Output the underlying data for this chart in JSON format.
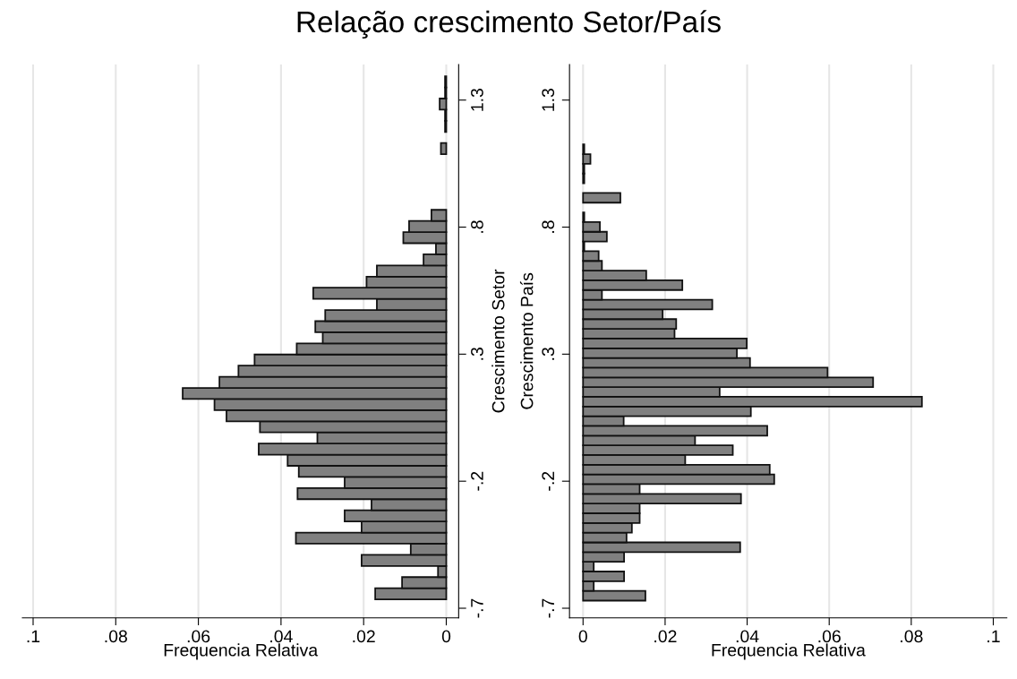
{
  "chart_data": [
    {
      "type": "histogram",
      "orientation": "horizontal",
      "title": "Relação crescimento Setor/País",
      "xlabel": "Frequencia Relativa",
      "ylabel": "Crescimento Setor",
      "color": "#808080",
      "grid": "x",
      "bins": [
        -0.665,
        -0.6212,
        -0.5774,
        -0.5336,
        -0.4898,
        -0.446,
        -0.4022,
        -0.3584,
        -0.3146,
        -0.2708,
        -0.227,
        -0.1832,
        -0.1394,
        -0.0956,
        -0.0518,
        -0.008,
        0.0358,
        0.0796,
        0.1234,
        0.1672,
        0.211,
        0.2548,
        0.2986,
        0.3424,
        0.3862,
        0.43,
        0.4738,
        0.5176,
        0.5614,
        0.6052,
        0.649,
        0.6928,
        0.7366,
        0.7804,
        0.8242,
        0.868,
        0.9118,
        0.9556,
        0.9994,
        1.0432,
        1.087,
        1.1308,
        1.1746,
        1.2184,
        1.2622,
        1.306,
        1.3498,
        1.3936
      ],
      "values": [
        0.0172,
        0.0107,
        0.002,
        0.0205,
        0.0086,
        0.0364,
        0.0205,
        0.0246,
        0.0181,
        0.036,
        0.0246,
        0.0357,
        0.0384,
        0.0454,
        0.0312,
        0.0451,
        0.0532,
        0.0561,
        0.0638,
        0.0549,
        0.0503,
        0.0464,
        0.0362,
        0.0299,
        0.0317,
        0.0293,
        0.0168,
        0.0322,
        0.0193,
        0.0168,
        0.0055,
        0.0025,
        0.0104,
        0.009,
        0.0036,
        0,
        0,
        0,
        0,
        0,
        0.0013,
        0,
        0.0003,
        0.0003,
        0.0016,
        0.0003,
        0.0003
      ],
      "xlim": [
        0.1026,
        -0.003
      ],
      "xticks": [
        {
          "value": 0.1,
          "label": ".1"
        },
        {
          "value": 0.08,
          "label": ".08"
        },
        {
          "value": 0.06,
          "label": ".06"
        },
        {
          "value": 0.04,
          "label": ".04"
        },
        {
          "value": 0.02,
          "label": ".02"
        },
        0
      ],
      "ylim": [
        -0.738,
        1.44
      ],
      "yticks": [
        {
          "value": -0.7,
          "label": "-.7"
        },
        {
          "value": -0.2,
          "label": "-.2"
        },
        {
          "value": 0.3,
          "label": ".3"
        },
        {
          "value": 0.8,
          "label": ".8"
        },
        {
          "value": 1.3,
          "label": "1.3"
        }
      ]
    },
    {
      "type": "histogram",
      "orientation": "horizontal",
      "xlabel": "Frequencia Relativa",
      "ylabel": "Crescimento País",
      "color": "#808080",
      "grid": "x",
      "bins": [
        -0.67,
        -0.6318,
        -0.5936,
        -0.5554,
        -0.5172,
        -0.479,
        -0.4408,
        -0.4026,
        -0.3644,
        -0.3262,
        -0.288,
        -0.2498,
        -0.2116,
        -0.1734,
        -0.1352,
        -0.097,
        -0.0588,
        -0.0206,
        0.0176,
        0.0558,
        0.094,
        0.1322,
        0.1704,
        0.2086,
        0.2468,
        0.285,
        0.3232,
        0.3614,
        0.3996,
        0.4378,
        0.476,
        0.5142,
        0.5524,
        0.5906,
        0.6288,
        0.667,
        0.7052,
        0.7434,
        0.7816,
        0.8198,
        0.858,
        0.8962,
        0.9344,
        0.9726,
        1.0108,
        1.049,
        1.0872,
        1.1254
      ],
      "values": [
        0.0152,
        0.0026,
        0.01,
        0.0026,
        0.01,
        0.0383,
        0.0106,
        0.0119,
        0.0138,
        0.0138,
        0.0385,
        0.0138,
        0.0466,
        0.0455,
        0.0249,
        0.0365,
        0.0273,
        0.0449,
        0.0099,
        0.0409,
        0.0826,
        0.0333,
        0.0707,
        0.0596,
        0.0407,
        0.0375,
        0.0399,
        0.0223,
        0.0227,
        0.0194,
        0.0315,
        0.0046,
        0.0242,
        0.0154,
        0.0046,
        0.0038,
        0.0003,
        0.0058,
        0.0041,
        0.0003,
        0,
        0.0091,
        0,
        0.0003,
        0.0003,
        0.0018,
        0.0003
      ],
      "xlim": [
        -0.0033,
        0.1033
      ],
      "xticks": [
        0,
        {
          "value": 0.02,
          "label": ".02"
        },
        {
          "value": 0.04,
          "label": ".04"
        },
        {
          "value": 0.06,
          "label": ".06"
        },
        {
          "value": 0.08,
          "label": ".08"
        },
        {
          "value": 0.1,
          "label": ".1"
        }
      ],
      "ylim": [
        -0.738,
        1.44
      ],
      "yticks": [
        {
          "value": -0.7,
          "label": "-.7"
        },
        {
          "value": -0.2,
          "label": "-.2"
        },
        {
          "value": 0.3,
          "label": ".3"
        },
        {
          "value": 0.8,
          "label": ".8"
        },
        {
          "value": 1.3,
          "label": "1.3"
        }
      ]
    }
  ]
}
